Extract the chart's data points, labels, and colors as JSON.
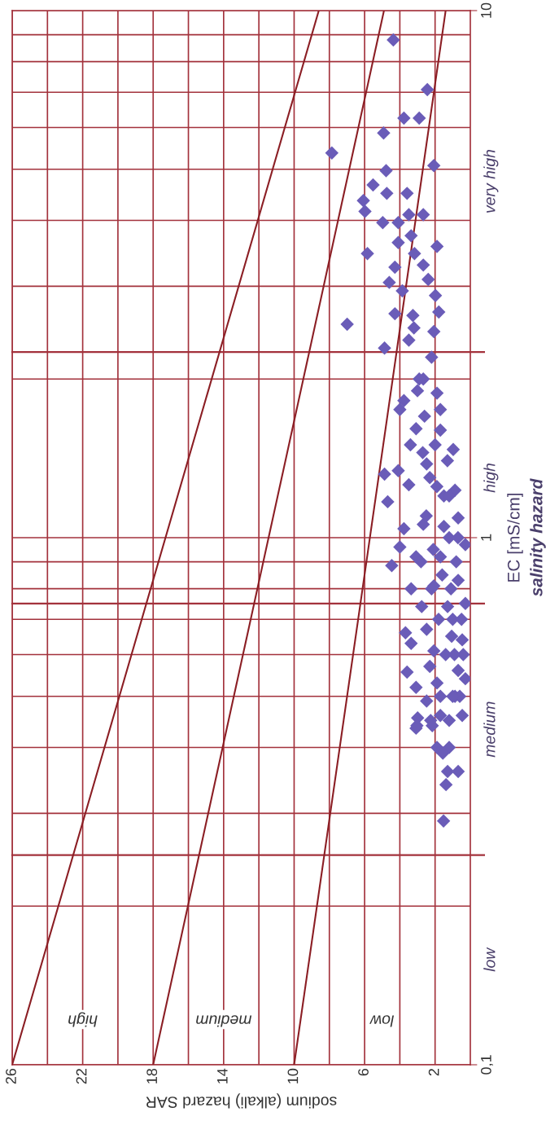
{
  "chart_data": {
    "type": "scatter",
    "xlabel": "sodium (alkali) hazard SAR",
    "ylabel": "EC [mS/cm]",
    "xlim": [
      26,
      0
    ],
    "xticks": [
      26,
      {
        "value": 24,
        "label": null
      },
      22,
      {
        "value": 20,
        "label": null
      },
      18,
      {
        "value": 16,
        "label": null
      },
      14,
      {
        "value": 12,
        "label": null
      },
      10,
      {
        "value": 8,
        "label": null
      },
      6,
      {
        "value": 4,
        "label": null
      },
      2
    ],
    "log": "y",
    "ylim": [
      0.1,
      10
    ],
    "yticks": [
      {
        "value": 0.1,
        "label": "0,1"
      },
      {
        "value": 0.2,
        "label": null
      },
      {
        "value": 0.3,
        "label": null
      },
      {
        "value": 0.4,
        "label": null
      },
      {
        "value": 0.5,
        "label": null
      },
      {
        "value": 0.6,
        "label": null
      },
      {
        "value": 0.7,
        "label": null
      },
      {
        "value": 0.8,
        "label": null
      },
      {
        "value": 0.9,
        "label": null
      },
      1,
      {
        "value": 2,
        "label": null
      },
      {
        "value": 3,
        "label": null
      },
      {
        "value": 4,
        "label": null
      },
      {
        "value": 5,
        "label": null
      },
      {
        "value": 6,
        "label": null
      },
      {
        "value": 7,
        "label": null
      },
      {
        "value": 8,
        "label": null
      },
      {
        "value": 9,
        "label": null
      },
      10
    ],
    "grid": true,
    "legend": false,
    "ref_lines": [
      {
        "axis": "y",
        "value": 0.25,
        "color": "#a3323c"
      },
      {
        "axis": "y",
        "value": 0.75,
        "color": "#a3323c"
      },
      {
        "axis": "y",
        "value": 2.25,
        "color": "#a3323c"
      }
    ],
    "annotations": [
      "low",
      "medium",
      "high",
      "very high",
      "salinity hazard",
      "low",
      "medium",
      "high"
    ],
    "series": [
      {
        "type": "line",
        "marker": "none",
        "line_style": "solid",
        "color": "#8b1e24",
        "x": [
          10,
          1.4
        ],
        "values": [
          0.1,
          10
        ]
      },
      {
        "type": "line",
        "marker": "none",
        "line_style": "solid",
        "color": "#8b1e24",
        "x": [
          18,
          4.9
        ],
        "values": [
          0.1,
          10
        ]
      },
      {
        "type": "line",
        "marker": "none",
        "line_style": "solid",
        "color": "#8b1e24",
        "x": [
          26,
          8.6
        ],
        "values": [
          0.1,
          10
        ]
      },
      {
        "marker": "diamond",
        "color": "#6a5cb8",
        "x": [
          4.37,
          2.44,
          3.77,
          2.9,
          4.92,
          7.86,
          2.07,
          4.78,
          5.52,
          4.74,
          6.07,
          5.98,
          3.59,
          4.97,
          4.09,
          3.49,
          2.67,
          4.09,
          3.36,
          1.89,
          5.84,
          3.17,
          4.28,
          2.67,
          4.6,
          2.39,
          3.86,
          1.98,
          4.28,
          1.79,
          6.99,
          3.26,
          2.07,
          4.87,
          3.49,
          3.77,
          4.0,
          2.67,
          1.89,
          3.08,
          1.7,
          0.97,
          4.87,
          4.09,
          4.69,
          3.49,
          2.48,
          0.87,
          3.77,
          2.67,
          0.69,
          4.0,
          4.46,
          3.08,
          1.7,
          0.28,
          3.36,
          2.07,
          0.69,
          2.76,
          1.29,
          0.28,
          3.68,
          2.48,
          1.06,
          3.36,
          2.07,
          0.46,
          3.59,
          2.3,
          0.69,
          3.08,
          1.89,
          0.28,
          2.48,
          0.87,
          2.99,
          2.16,
          0.46,
          3.08,
          1.7,
          3.03,
          2.25,
          1.89,
          1.2,
          1.56,
          1.29,
          0.69,
          1.38,
          1.52,
          2.0,
          1.5,
          2.5,
          1.2,
          0.8,
          1.6,
          2.2,
          1.0,
          1.4,
          0.9,
          1.8,
          2.8,
          1.3,
          2.3,
          1.7,
          2.6,
          3.0,
          2.2,
          3.2,
          2.9,
          1.9,
          1.1,
          0.5,
          0.6,
          1.0,
          1.7,
          0.4,
          1.2,
          2.1,
          1.5,
          0.7,
          3.4,
          2.7,
          1.2
        ],
        "values": [
          8.8,
          7.08,
          6.25,
          6.25,
          5.86,
          5.37,
          5.08,
          4.97,
          4.67,
          4.5,
          4.36,
          4.16,
          4.5,
          3.96,
          3.96,
          4.1,
          4.1,
          3.63,
          3.74,
          3.57,
          3.46,
          3.46,
          3.26,
          3.29,
          3.05,
          3.09,
          2.94,
          2.88,
          2.66,
          2.68,
          2.54,
          2.64,
          2.46,
          2.29,
          2.37,
          1.82,
          1.75,
          2.0,
          1.88,
          1.61,
          1.75,
          1.47,
          1.32,
          1.34,
          1.17,
          1.26,
          1.38,
          1.23,
          1.04,
          1.06,
          1.09,
          0.96,
          0.885,
          0.92,
          0.92,
          0.97,
          0.8,
          0.81,
          0.83,
          0.74,
          0.74,
          0.75,
          0.66,
          0.67,
          0.65,
          0.63,
          0.61,
          0.64,
          0.556,
          0.57,
          0.56,
          0.52,
          0.53,
          0.54,
          0.49,
          0.5,
          0.455,
          0.44,
          0.46,
          0.435,
          0.46,
          0.44,
          0.45,
          0.4,
          0.4,
          0.39,
          0.36,
          0.36,
          0.34,
          0.29,
          1.5,
          1.2,
          1.1,
          1.0,
          0.9,
          0.85,
          0.8,
          0.7,
          0.6,
          0.6,
          0.7,
          0.9,
          1.4,
          1.3,
          1.6,
          1.7,
          1.9,
          2.2,
          2.5,
          2.0,
          1.25,
          0.8,
          0.7,
          0.5,
          0.5,
          0.5,
          0.6,
          0.45,
          0.95,
          1.05,
          1.0,
          1.5,
          1.45,
          1.2
        ]
      }
    ]
  }
}
